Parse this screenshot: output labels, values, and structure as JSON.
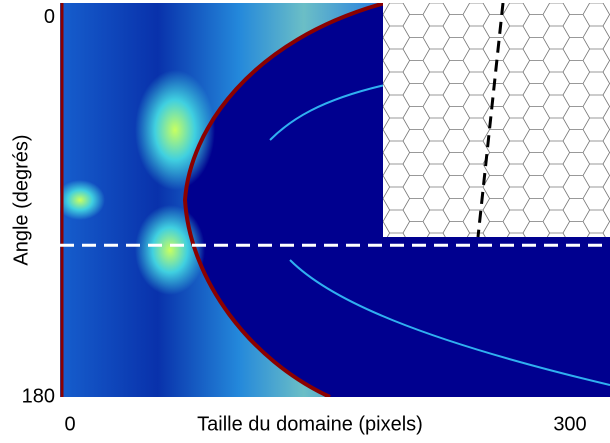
{
  "chart_data": {
    "type": "heatmap",
    "xlabel": "Taille du domaine (pixels)",
    "ylabel": "Angle (degrés)",
    "xlim": [
      -6,
      324
    ],
    "xticks": [
      0,
      300
    ],
    "ylim": [
      -7,
      180
    ],
    "yticks": [
      0,
      180
    ],
    "hline": 108
  }
}
